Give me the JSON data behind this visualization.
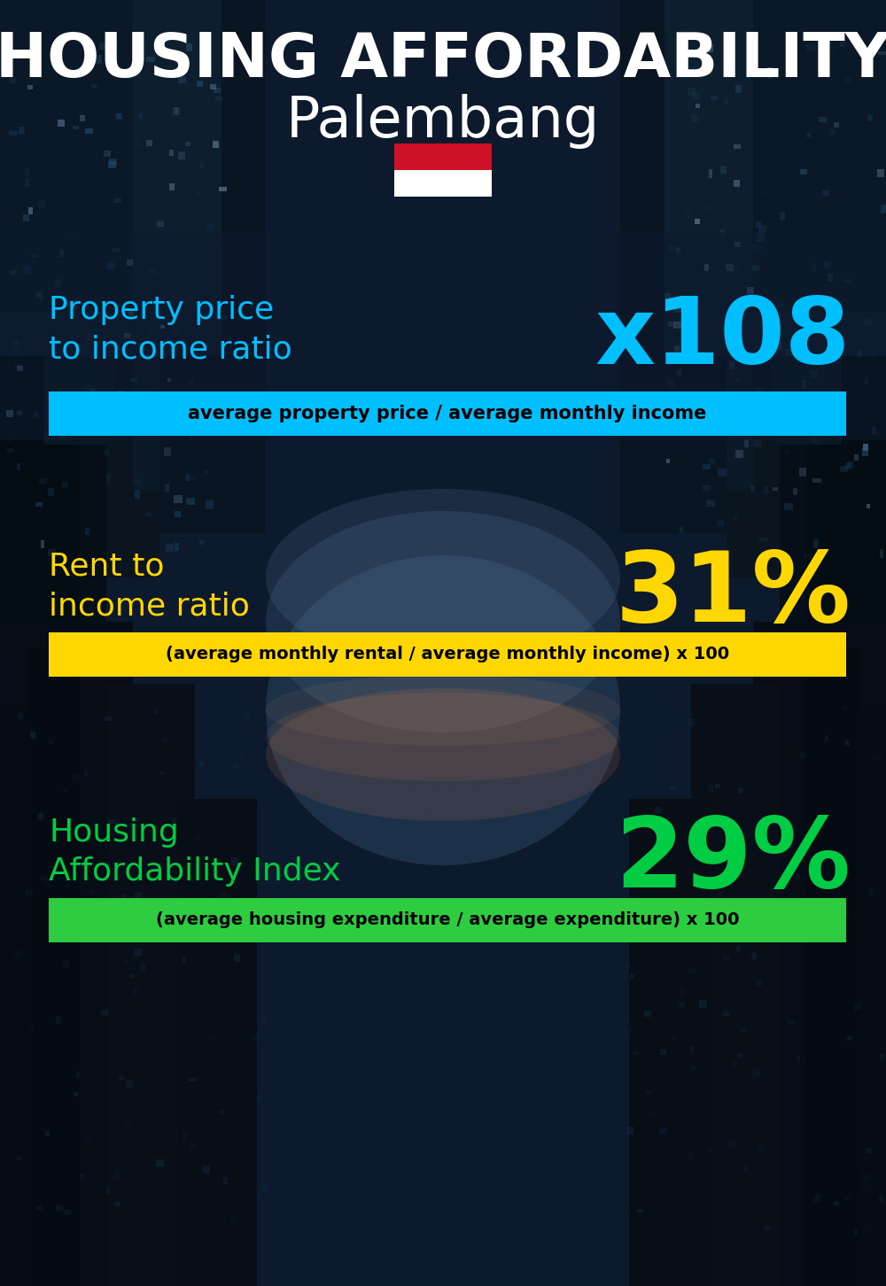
{
  "title_line1": "HOUSING AFFORDABILITY",
  "title_line2": "Palembang",
  "title_line1_color": "#FFFFFF",
  "title_line2_color": "#FFFFFF",
  "title_line1_fontsize": 50,
  "title_line2_fontsize": 46,
  "title_line1_weight": "bold",
  "title_line2_weight": "normal",
  "metric1_label": "Property price\nto income ratio",
  "metric1_value": "x108",
  "metric1_label_color": "#00BFFF",
  "metric1_value_color": "#00BFFF",
  "metric1_sub_text": "average property price / average monthly income",
  "metric1_sub_bg": "#00BFFF",
  "metric1_sub_text_color": "#000000",
  "metric2_label": "Rent to\nincome ratio",
  "metric2_value": "31%",
  "metric2_label_color": "#FFD700",
  "metric2_value_color": "#FFD700",
  "metric2_sub_text": "(average monthly rental / average monthly income) x 100",
  "metric2_sub_bg": "#FFD700",
  "metric2_sub_text_color": "#000000",
  "metric3_label": "Housing\nAffordability Index",
  "metric3_value": "29%",
  "metric3_label_color": "#00CC44",
  "metric3_value_color": "#00CC44",
  "metric3_sub_text": "(average housing expenditure / average expenditure) x 100",
  "metric3_sub_bg": "#2ECC40",
  "metric3_sub_text_color": "#000000",
  "bg_color": "#0a1628",
  "flag_red": "#CE1126",
  "flag_white": "#FFFFFF"
}
